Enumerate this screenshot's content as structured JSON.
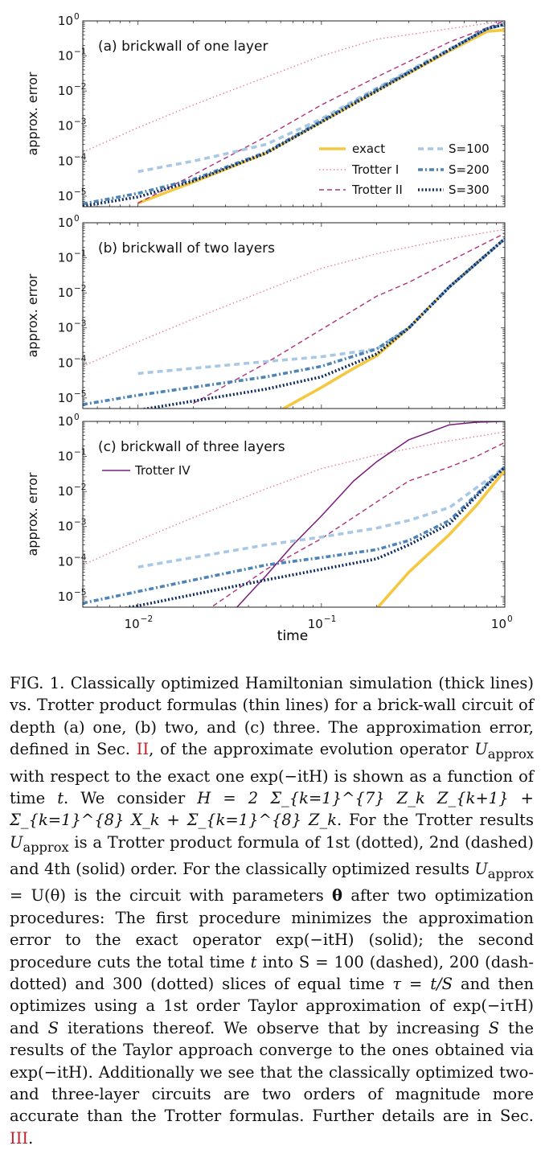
{
  "figure": {
    "xlabel": "time",
    "ylabel": "approx. error",
    "x_ticks": [
      "10",
      "10",
      "10"
    ],
    "x_tick_exp": [
      "−2",
      "−1",
      "0"
    ],
    "y_ticks": [
      "10",
      "10",
      "10",
      "10",
      "10",
      "10"
    ],
    "y_tick_exp": [
      "0",
      "−1",
      "−2",
      "−3",
      "−4",
      "−5"
    ],
    "legend": {
      "exact": "exact",
      "trotter1": "Trotter I",
      "trotter2": "Trotter II",
      "s100": "S=100",
      "s200": "S=200",
      "s300": "S=300",
      "trotter4": "Trotter IV"
    },
    "colors": {
      "exact": "#f5c842",
      "trotter1": "#e8829a",
      "trotter2": "#b0307a",
      "trotter4": "#7a1b7e",
      "s100": "#a9c8e4",
      "s200": "#4f84b6",
      "s300": "#0e2a5e"
    }
  },
  "chart_data": [
    {
      "type": "line",
      "title": "(a) brickwall of one layer",
      "x_scale": "log",
      "y_scale": "log",
      "xlim": [
        0.005,
        1
      ],
      "ylim": [
        5e-06,
        1
      ],
      "series": [
        {
          "name": "exact",
          "x": [
            0.01,
            0.02,
            0.05,
            0.1,
            0.2,
            0.5,
            0.8,
            1.0
          ],
          "y": [
            6.3e-06,
            2.5e-05,
            0.00017,
            0.0013,
            0.01,
            0.14,
            0.5,
            0.55
          ]
        },
        {
          "name": "Trotter I",
          "x": [
            0.005,
            0.01,
            0.02,
            0.05,
            0.1,
            0.2,
            0.5,
            1.0
          ],
          "y": [
            0.00018,
            0.0009,
            0.004,
            0.025,
            0.1,
            0.3,
            0.6,
            1.0
          ]
        },
        {
          "name": "Trotter II",
          "x": [
            0.01,
            0.02,
            0.05,
            0.1,
            0.2,
            0.5,
            1.0
          ],
          "y": [
            6.3e-06,
            4e-05,
            0.0005,
            0.004,
            0.025,
            0.25,
            1.0
          ]
        },
        {
          "name": "S=100",
          "x": [
            0.01,
            0.02,
            0.03,
            0.05,
            0.1,
            0.2,
            0.5,
            0.8,
            1.0
          ],
          "y": [
            5e-05,
            0.0001,
            0.00016,
            0.0003,
            0.0016,
            0.012,
            0.16,
            0.6,
            0.8
          ]
        },
        {
          "name": "S=200",
          "x": [
            0.005,
            0.01,
            0.02,
            0.05,
            0.1,
            0.2,
            0.5,
            0.8,
            1.0
          ],
          "y": [
            6e-06,
            1.2e-05,
            3e-05,
            0.00018,
            0.0014,
            0.011,
            0.15,
            0.6,
            0.8
          ]
        },
        {
          "name": "S=300",
          "x": [
            0.005,
            0.01,
            0.02,
            0.05,
            0.1,
            0.2,
            0.5,
            0.8,
            1.0
          ],
          "y": [
            5.2e-06,
            9.5e-06,
            2.7e-05,
            0.00017,
            0.0013,
            0.01,
            0.15,
            0.6,
            0.8
          ]
        }
      ]
    },
    {
      "type": "line",
      "title": "(b) brickwall of two layers",
      "x_scale": "log",
      "y_scale": "log",
      "xlim": [
        0.005,
        1
      ],
      "ylim": [
        5e-06,
        1
      ],
      "series": [
        {
          "name": "exact",
          "x": [
            0.06,
            0.1,
            0.15,
            0.2,
            0.3,
            0.5,
            1.0
          ],
          "y": [
            4.5e-06,
            2e-05,
            7e-05,
            0.00016,
            0.001,
            0.015,
            0.35
          ]
        },
        {
          "name": "Trotter I",
          "x": [
            0.005,
            0.01,
            0.02,
            0.05,
            0.1,
            0.2,
            0.5,
            1.0
          ],
          "y": [
            8e-05,
            0.0004,
            0.0018,
            0.012,
            0.05,
            0.13,
            0.35,
            0.65
          ]
        },
        {
          "name": "Trotter II",
          "x": [
            0.02,
            0.05,
            0.1,
            0.2,
            0.3,
            0.5,
            1.0
          ],
          "y": [
            7e-06,
            0.0001,
            0.0009,
            0.008,
            0.02,
            0.08,
            0.5
          ]
        },
        {
          "name": "S=100",
          "x": [
            0.01,
            0.05,
            0.1,
            0.2,
            0.3,
            0.5,
            1.0
          ],
          "y": [
            5e-05,
            0.00011,
            0.00015,
            0.00025,
            0.001,
            0.015,
            0.35
          ]
        },
        {
          "name": "S=200",
          "x": [
            0.005,
            0.01,
            0.05,
            0.1,
            0.2,
            0.3,
            0.5,
            1.0
          ],
          "y": [
            6.5e-06,
            1.2e-05,
            4e-05,
            8e-05,
            0.00025,
            0.001,
            0.015,
            0.35
          ]
        },
        {
          "name": "S=300",
          "x": [
            0.005,
            0.01,
            0.05,
            0.1,
            0.2,
            0.3,
            0.5,
            1.0
          ],
          "y": [
            2.8e-06,
            4.5e-06,
            1.8e-05,
            4e-05,
            0.00018,
            0.001,
            0.015,
            0.35
          ]
        }
      ]
    },
    {
      "type": "line",
      "title": "(c) brickwall of three layers",
      "x_scale": "log",
      "y_scale": "log",
      "xlim": [
        0.005,
        1
      ],
      "ylim": [
        5e-06,
        1
      ],
      "series": [
        {
          "name": "exact",
          "x": [
            0.17,
            0.2,
            0.3,
            0.5,
            0.7,
            1.0
          ],
          "y": [
            2.2e-06,
            4.5e-06,
            5e-05,
            0.0006,
            0.004,
            0.04
          ]
        },
        {
          "name": "Trotter I",
          "x": [
            0.005,
            0.01,
            0.02,
            0.05,
            0.1,
            0.2,
            0.5,
            1.0
          ],
          "y": [
            8e-05,
            0.0004,
            0.0018,
            0.012,
            0.045,
            0.11,
            0.28,
            0.5
          ]
        },
        {
          "name": "Trotter II",
          "x": [
            0.02,
            0.05,
            0.1,
            0.2,
            0.3,
            0.5,
            0.7,
            1.0
          ],
          "y": [
            2.2e-06,
            6e-05,
            0.00045,
            0.005,
            0.02,
            0.05,
            0.1,
            0.25
          ]
        },
        {
          "name": "Trotter IV",
          "x": [
            0.03,
            0.05,
            0.07,
            0.1,
            0.15,
            0.2,
            0.3,
            0.5,
            0.7,
            1.0
          ],
          "y": [
            2.2e-06,
            4e-05,
            0.0003,
            0.002,
            0.02,
            0.07,
            0.3,
            0.8,
            0.95,
            1.0
          ]
        },
        {
          "name": "S=100",
          "x": [
            0.01,
            0.05,
            0.1,
            0.2,
            0.3,
            0.5,
            1.0
          ],
          "y": [
            7e-05,
            0.0003,
            0.0005,
            0.0009,
            0.0015,
            0.0035,
            0.05
          ]
        },
        {
          "name": "S=200",
          "x": [
            0.005,
            0.01,
            0.05,
            0.1,
            0.2,
            0.3,
            0.5,
            1.0
          ],
          "y": [
            6.5e-06,
            1.4e-05,
            8e-05,
            0.00013,
            0.00022,
            0.0004,
            0.0015,
            0.05
          ]
        },
        {
          "name": "S=300",
          "x": [
            0.005,
            0.01,
            0.05,
            0.1,
            0.2,
            0.3,
            0.5,
            1.0
          ],
          "y": [
            2.8e-06,
            5.5e-06,
            3e-05,
            6e-05,
            0.00012,
            0.0003,
            0.0012,
            0.05
          ]
        }
      ]
    }
  ],
  "caption": {
    "label": "FIG. 1.",
    "t1": "Classically optimized Hamiltonian simulation (thick lines) vs. Trotter product formulas (thin lines) for a brick-wall circuit of depth (a) one, (b) two, and (c) three. The approximation error, defined in Sec.",
    "ref1": "II",
    "t2": ", of the approximate evolution operator",
    "m_uapprox": "U",
    "m_sub_approx": "approx",
    "t3": "with respect to the exact one",
    "m_exp": "exp(−itH)",
    "t4": "is shown as a function of time",
    "m_t": "t",
    "t5": ". We consider",
    "m_hamiltonian": "H = 2 Σ_{k=1}^{7} Z_k Z_{k+1} + Σ_{k=1}^{8} X_k + Σ_{k=1}^{8} Z_k",
    "t6": ". For the Trotter results",
    "t7": "is a Trotter product formula of 1st (dotted), 2nd (dashed) and 4th (solid) order. For the classically optimized results",
    "m_utheta": "= U(θ)",
    "t8": "is the circuit with parameters",
    "m_theta": "θ",
    "t9": "after two optimization procedures: The first procedure minimizes the approximation error to the exact operator",
    "t10": "(solid); the second procedure cuts the total time",
    "t11": "into",
    "m_s100": "S = 100",
    "t12": "(dashed), 200 (dash-dotted) and 300 (dotted) slices of equal time",
    "m_tau": "τ = t/S",
    "t13": "and then optimizes using a 1st order Taylor approximation of",
    "m_exptau": "exp(−iτH)",
    "t14": "and",
    "m_S": "S",
    "t15": "iterations thereof. We observe that by increasing",
    "t16": "the results of the Taylor approach converge to the ones obtained via",
    "t17": ". Additionally we see that the classically optimized two- and three-layer circuits are two orders of magnitude more accurate than the Trotter formulas. Further details are in Sec.",
    "ref2": "III",
    "t18": "."
  }
}
